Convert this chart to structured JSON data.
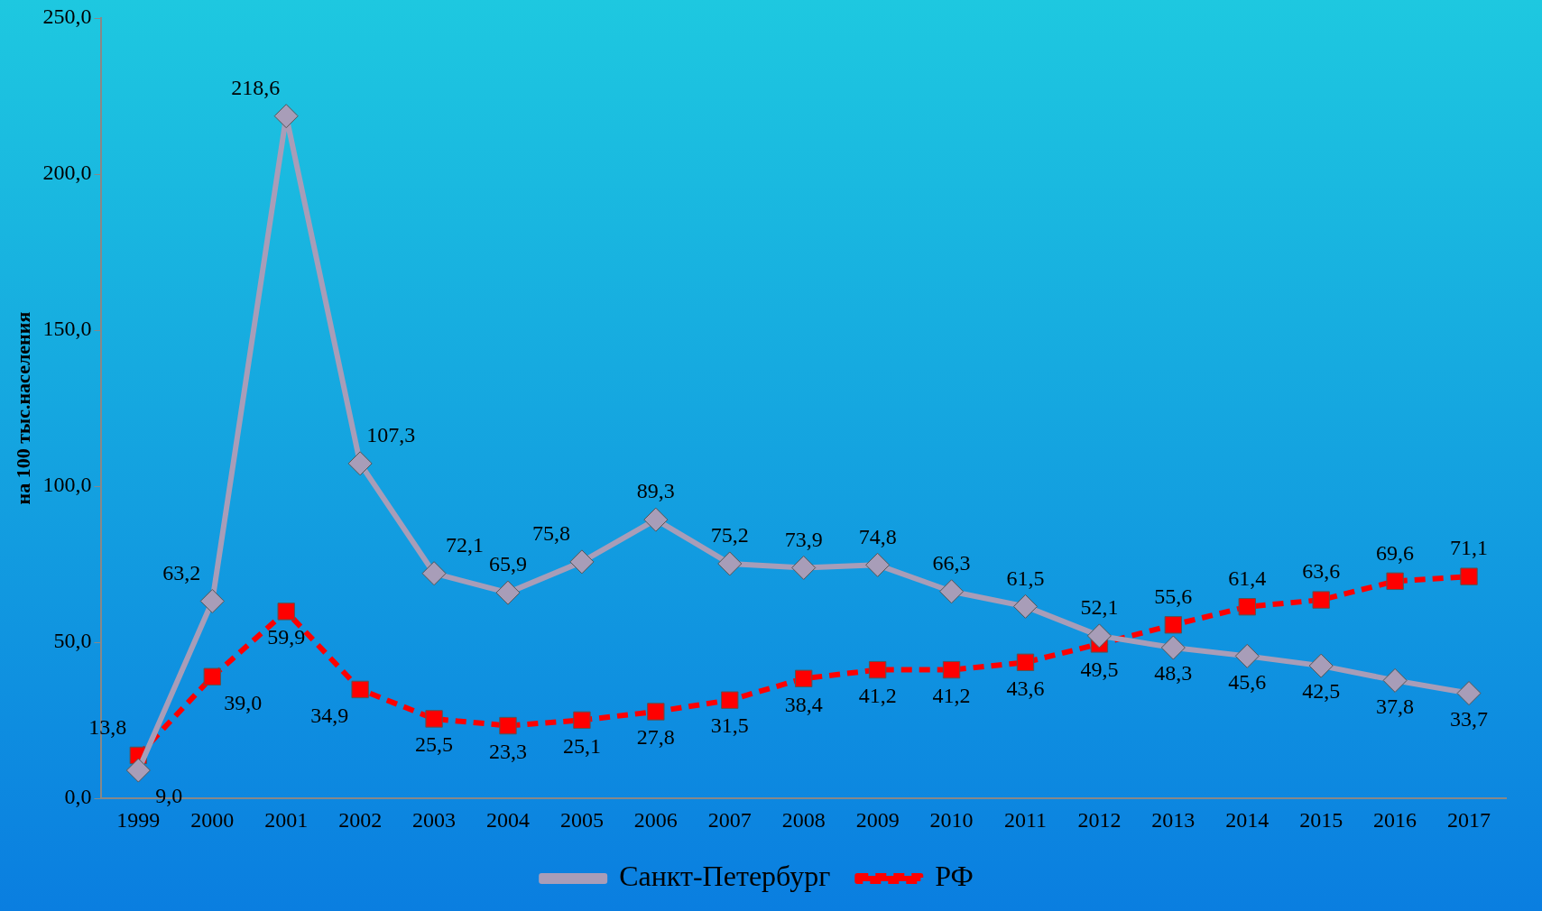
{
  "chart_data": {
    "type": "line",
    "ylabel": "на 100 тыс.населения",
    "categories": [
      "1999",
      "2000",
      "2001",
      "2002",
      "2003",
      "2004",
      "2005",
      "2006",
      "2007",
      "2008",
      "2009",
      "2010",
      "2011",
      "2012",
      "2013",
      "2014",
      "2015",
      "2016",
      "2017"
    ],
    "ylim": [
      0,
      250
    ],
    "yticks": [
      {
        "value": 0,
        "label": "0,0"
      },
      {
        "value": 50,
        "label": "50,0"
      },
      {
        "value": 100,
        "label": "100,0"
      },
      {
        "value": 150,
        "label": "150,0"
      },
      {
        "value": 200,
        "label": "200,0"
      },
      {
        "value": 250,
        "label": "250,0"
      }
    ],
    "grid": false,
    "legend": "bottom",
    "series": [
      {
        "name": "Санкт-Петербург",
        "color": "#a89db8",
        "marker": "diamond",
        "line_style": "solid",
        "values": [
          9.0,
          63.2,
          218.6,
          107.3,
          72.1,
          65.9,
          75.8,
          89.3,
          75.2,
          73.9,
          74.8,
          66.3,
          61.5,
          52.1,
          48.3,
          45.6,
          42.5,
          37.8,
          33.7
        ],
        "value_labels": [
          "9,0",
          "63,2",
          "218,6",
          "107,3",
          "72,1",
          "65,9",
          "75,8",
          "89,3",
          "75,2",
          "73,9",
          "74,8",
          "66,3",
          "61,5",
          "52,1",
          "48,3",
          "45,6",
          "42,5",
          "37,8",
          "33,7"
        ]
      },
      {
        "name": "РФ",
        "color": "#ff0000",
        "marker": "square",
        "line_style": "dashed",
        "values": [
          13.8,
          39.0,
          59.9,
          34.9,
          25.5,
          23.3,
          25.1,
          27.8,
          31.5,
          38.4,
          41.2,
          41.2,
          43.6,
          49.5,
          55.6,
          61.4,
          63.6,
          69.6,
          71.1
        ],
        "value_labels": [
          "13,8",
          "39,0",
          "59,9",
          "34,9",
          "25,5",
          "23,3",
          "25,1",
          "27,8",
          "31,5",
          "38,4",
          "41,2",
          "41,2",
          "43,6",
          "49,5",
          "55,6",
          "61,4",
          "63,6",
          "69,6",
          "71,1"
        ]
      }
    ]
  }
}
